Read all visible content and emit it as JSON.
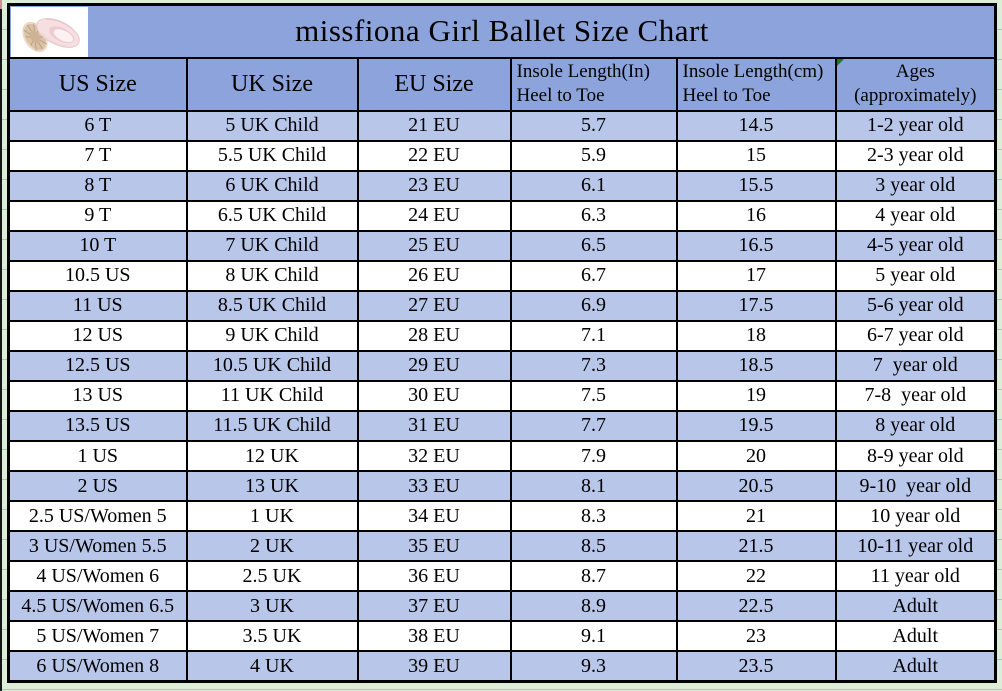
{
  "title": "missfiona Girl Ballet Size Chart",
  "logo_name": "ballet-shoes-photo",
  "colors": {
    "header_blue": "#8CA4DB",
    "row_blue": "#B8C6EA",
    "row_white": "#FFFFFF",
    "border_black": "#000000",
    "sheet_green": "#DCEDD8",
    "grid_pink": "#E3A8B2",
    "flag_green": "#1E7A1E"
  },
  "chart_data": {
    "type": "table",
    "title": "missfiona Girl Ballet Size Chart",
    "columns": [
      {
        "label": "US Size",
        "sub": ""
      },
      {
        "label": "UK Size",
        "sub": ""
      },
      {
        "label": "EU Size",
        "sub": ""
      },
      {
        "label": "Insole Length(In)",
        "sub": "Heel to Toe"
      },
      {
        "label": "Insole Length(cm)",
        "sub": "Heel to Toe"
      },
      {
        "label": "Ages",
        "sub": "(approximately)"
      }
    ],
    "rows": [
      [
        "6 T",
        "5 UK Child",
        "21 EU",
        "5.7",
        "14.5",
        "1-2 year old"
      ],
      [
        "7 T",
        "5.5 UK Child",
        "22 EU",
        "5.9",
        "15",
        "2-3 year old"
      ],
      [
        "8 T",
        "6 UK Child",
        "23 EU",
        "6.1",
        "15.5",
        "3 year old"
      ],
      [
        "9 T",
        "6.5 UK Child",
        "24 EU",
        "6.3",
        "16",
        "4 year old"
      ],
      [
        "10 T",
        "7 UK Child",
        "25 EU",
        "6.5",
        "16.5",
        "4-5 year old"
      ],
      [
        "10.5 US",
        "8 UK Child",
        "26 EU",
        "6.7",
        "17",
        "5 year old"
      ],
      [
        "11 US",
        "8.5 UK Child",
        "27 EU",
        "6.9",
        "17.5",
        "5-6 year old"
      ],
      [
        "12 US",
        "9 UK Child",
        "28 EU",
        "7.1",
        "18",
        "6-7 year old"
      ],
      [
        "12.5 US",
        "10.5 UK Child",
        "29 EU",
        "7.3",
        "18.5",
        "7  year old"
      ],
      [
        "13 US",
        "11 UK Child",
        "30 EU",
        "7.5",
        "19",
        "7-8  year old"
      ],
      [
        "13.5 US",
        "11.5 UK Child",
        "31 EU",
        "7.7",
        "19.5",
        "8 year old"
      ],
      [
        "1 US",
        "12 UK",
        "32 EU",
        "7.9",
        "20",
        "8-9 year old"
      ],
      [
        "2 US",
        "13 UK",
        "33 EU",
        "8.1",
        "20.5",
        "9-10  year old"
      ],
      [
        "2.5 US/Women 5",
        "1 UK",
        "34 EU",
        "8.3",
        "21",
        "10 year old"
      ],
      [
        "3 US/Women 5.5",
        "2 UK",
        "35 EU",
        "8.5",
        "21.5",
        "10-11 year old"
      ],
      [
        "4 US/Women 6",
        "2.5 UK",
        "36 EU",
        "8.7",
        "22",
        "11 year old"
      ],
      [
        "4.5 US/Women 6.5",
        "3 UK",
        "37 EU",
        "8.9",
        "22.5",
        "Adult"
      ],
      [
        "5 US/Women 7",
        "3.5 UK",
        "38 EU",
        "9.1",
        "23",
        "Adult"
      ],
      [
        "6 US/Women 8",
        "4 UK",
        "39 EU",
        "9.3",
        "23.5",
        "Adult"
      ]
    ]
  }
}
